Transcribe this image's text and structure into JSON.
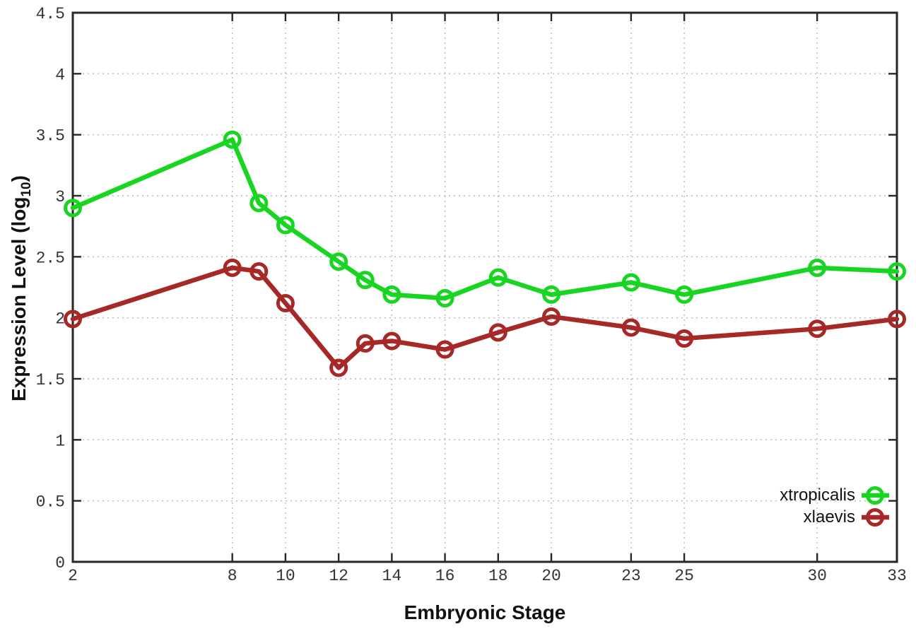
{
  "chart_data": {
    "type": "line",
    "title": "",
    "xlabel": "Embryonic Stage",
    "ylabel": "Expression Level (log10)",
    "ylabel_parts": {
      "base": "Expression Level (log",
      "sub": "10",
      "close": ")"
    },
    "xlim": [
      2,
      33
    ],
    "ylim": [
      0,
      4.5
    ],
    "x_ticks": [
      2,
      8,
      10,
      12,
      14,
      16,
      18,
      20,
      23,
      25,
      30,
      33
    ],
    "y_ticks": [
      0,
      0.5,
      1,
      1.5,
      2,
      2.5,
      3,
      3.5,
      4,
      4.5
    ],
    "grid": true,
    "legend_position": "bottom-right",
    "marker": "open-circle",
    "x": [
      2,
      8,
      9,
      10,
      12,
      13,
      14,
      16,
      18,
      20,
      23,
      25,
      30,
      33
    ],
    "series": [
      {
        "name": "xtropicalis",
        "color": "#17d520",
        "values": [
          2.9,
          3.46,
          2.94,
          2.76,
          2.46,
          2.31,
          2.19,
          2.16,
          2.33,
          2.19,
          2.29,
          2.19,
          2.41,
          2.38
        ]
      },
      {
        "name": "xlaevis",
        "color": "#a72927",
        "values": [
          1.99,
          2.41,
          2.38,
          2.12,
          1.59,
          1.79,
          1.81,
          1.74,
          1.88,
          2.01,
          1.92,
          1.83,
          1.91,
          1.99
        ]
      }
    ],
    "colors": {
      "frame": "#262626",
      "grid": "#b8b8b8",
      "tick_text": "#333333"
    }
  }
}
